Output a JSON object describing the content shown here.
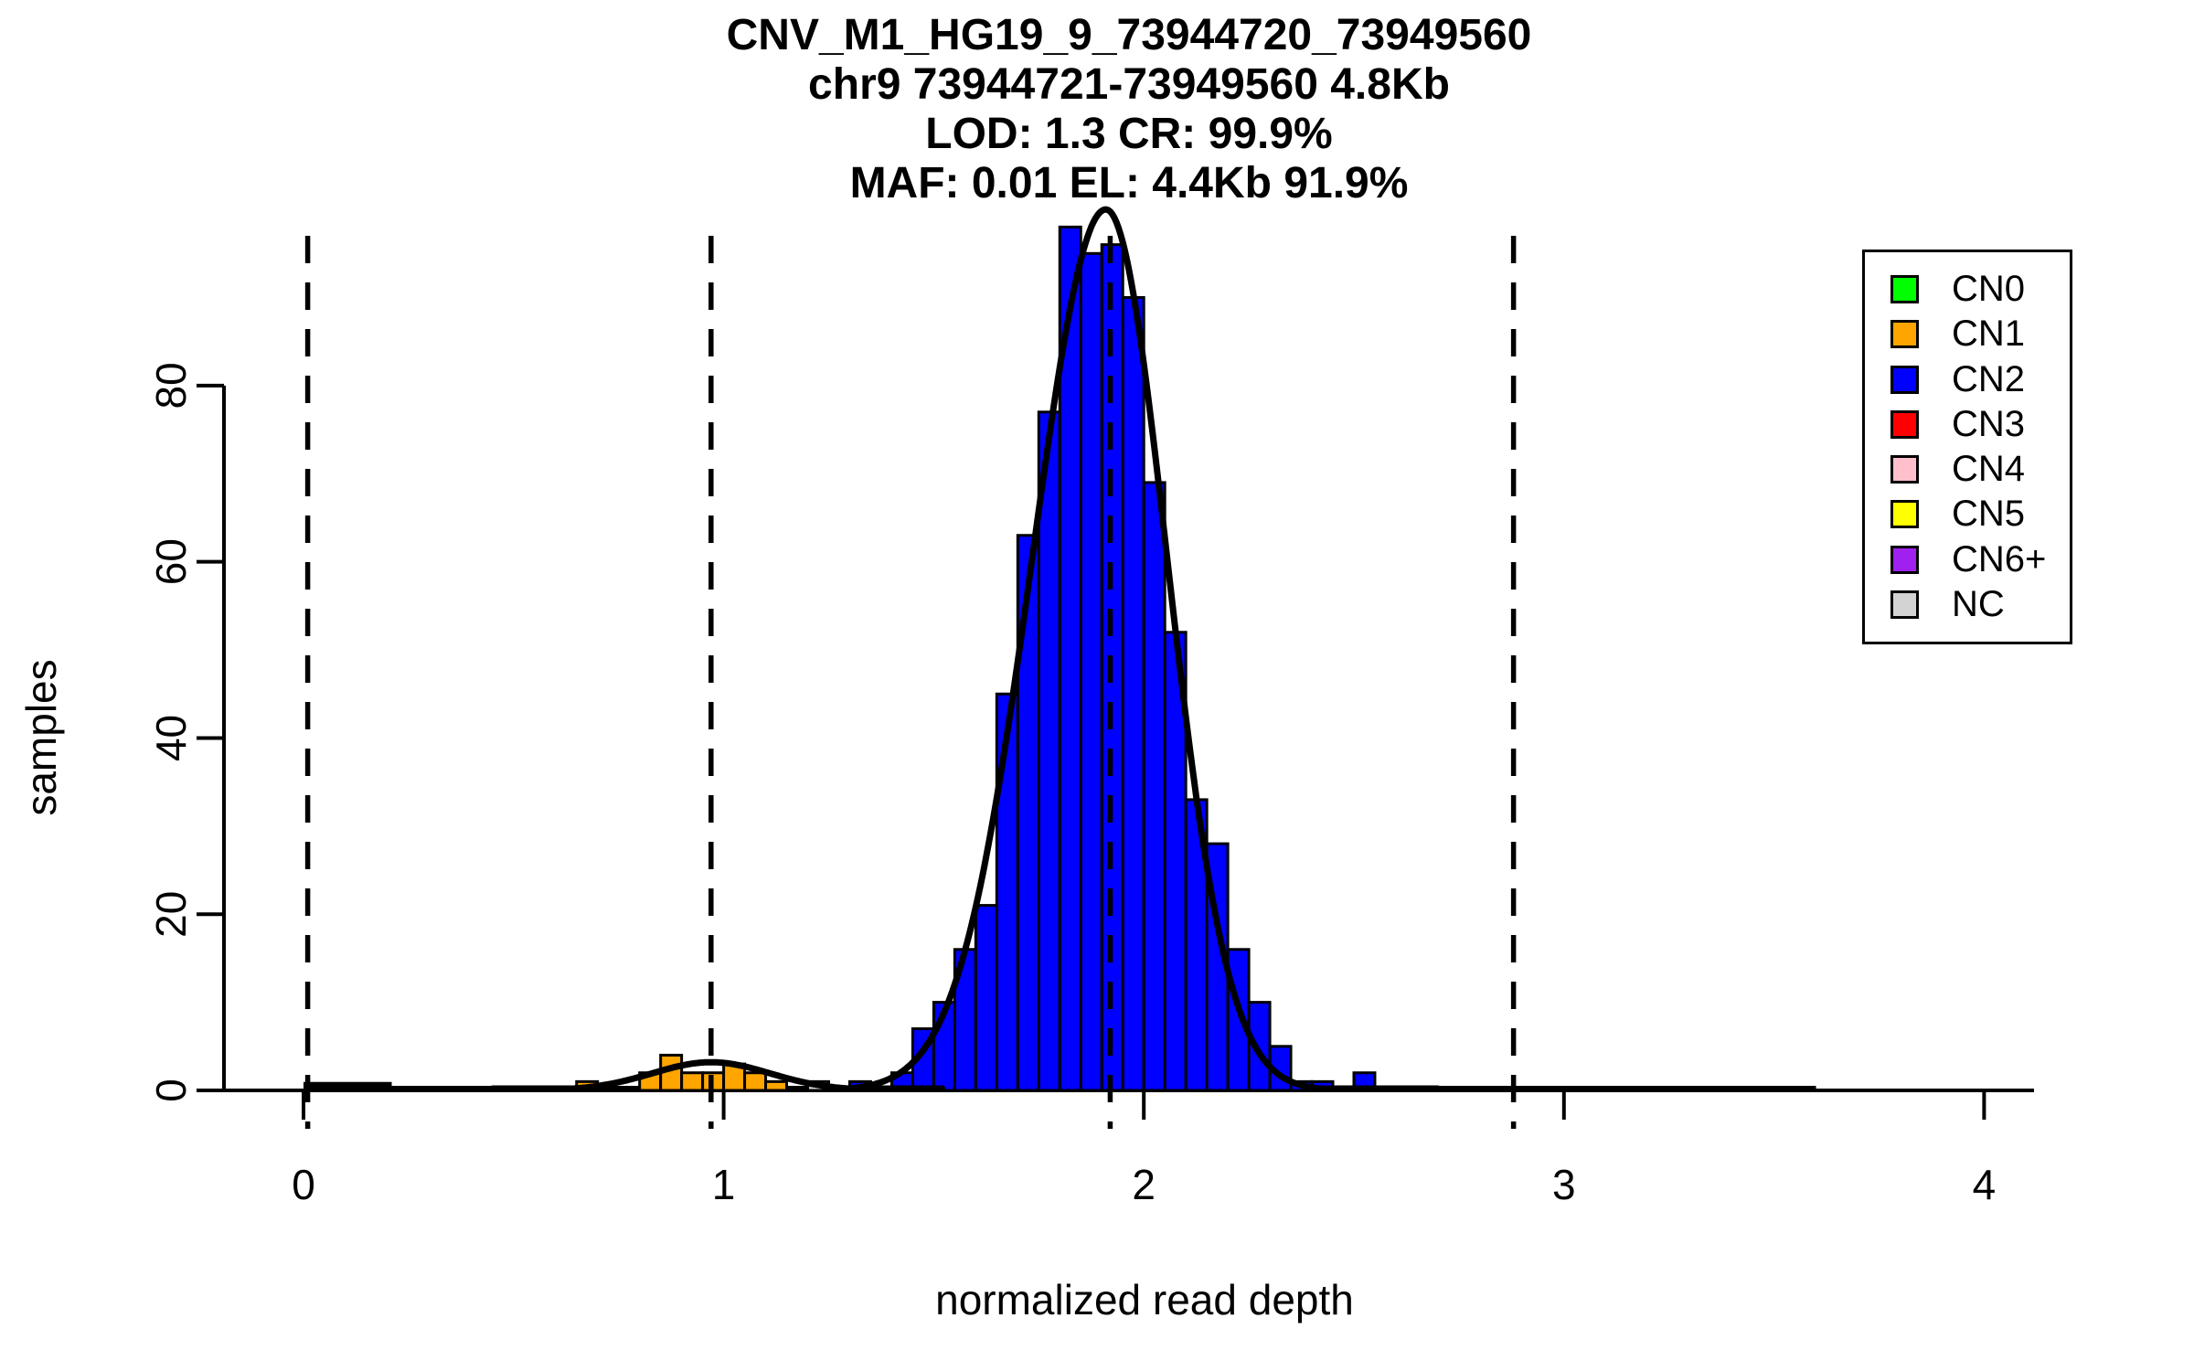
{
  "chart_data": {
    "type": "bar",
    "chart_kind": "histogram-with-gaussian-fits",
    "title_lines": [
      "CNV_M1_HG19_9_73944720_73949560",
      "chr9 73944721-73949560 4.8Kb",
      "LOD: 1.3 CR: 99.9%",
      "MAF: 0.01 EL: 4.4Kb 91.9%"
    ],
    "xlabel": "normalized read depth",
    "ylabel": "samples",
    "x_ticks": [
      "0",
      "1",
      "2",
      "3",
      "4"
    ],
    "x_tick_values": [
      0,
      1,
      2,
      3,
      4
    ],
    "y_ticks": [
      "0",
      "20",
      "40",
      "60",
      "80"
    ],
    "y_tick_values": [
      0,
      20,
      40,
      60,
      80
    ],
    "xlim": [
      -0.19,
      4.07
    ],
    "ylim": [
      0,
      101
    ],
    "grid": false,
    "legend_position": "top-right",
    "bin_width": 0.05,
    "bars": [
      {
        "x": 0.65,
        "count": 1,
        "cn": "CN1"
      },
      {
        "x": 0.8,
        "count": 2,
        "cn": "CN1"
      },
      {
        "x": 0.85,
        "count": 4,
        "cn": "CN1"
      },
      {
        "x": 0.9,
        "count": 2,
        "cn": "CN1"
      },
      {
        "x": 0.95,
        "count": 2,
        "cn": "CN1"
      },
      {
        "x": 1.0,
        "count": 3,
        "cn": "CN1"
      },
      {
        "x": 1.05,
        "count": 2,
        "cn": "CN1"
      },
      {
        "x": 1.1,
        "count": 1,
        "cn": "CN1"
      },
      {
        "x": 1.2,
        "count": 1,
        "cn": "NC"
      },
      {
        "x": 1.3,
        "count": 1,
        "cn": "CN2"
      },
      {
        "x": 1.4,
        "count": 2,
        "cn": "CN2"
      },
      {
        "x": 1.45,
        "count": 7,
        "cn": "CN2"
      },
      {
        "x": 1.5,
        "count": 10,
        "cn": "CN2"
      },
      {
        "x": 1.55,
        "count": 16,
        "cn": "CN2"
      },
      {
        "x": 1.6,
        "count": 21,
        "cn": "CN2"
      },
      {
        "x": 1.65,
        "count": 45,
        "cn": "CN2"
      },
      {
        "x": 1.7,
        "count": 63,
        "cn": "CN2"
      },
      {
        "x": 1.75,
        "count": 77,
        "cn": "CN2"
      },
      {
        "x": 1.8,
        "count": 98,
        "cn": "CN2"
      },
      {
        "x": 1.85,
        "count": 95,
        "cn": "CN2"
      },
      {
        "x": 1.9,
        "count": 96,
        "cn": "CN2"
      },
      {
        "x": 1.95,
        "count": 90,
        "cn": "CN2"
      },
      {
        "x": 2.0,
        "count": 69,
        "cn": "CN2"
      },
      {
        "x": 2.05,
        "count": 52,
        "cn": "CN2"
      },
      {
        "x": 2.1,
        "count": 33,
        "cn": "CN2"
      },
      {
        "x": 2.15,
        "count": 28,
        "cn": "CN2"
      },
      {
        "x": 2.2,
        "count": 16,
        "cn": "CN2"
      },
      {
        "x": 2.25,
        "count": 10,
        "cn": "CN2"
      },
      {
        "x": 2.3,
        "count": 5,
        "cn": "CN2"
      },
      {
        "x": 2.35,
        "count": 1,
        "cn": "CN2"
      },
      {
        "x": 2.4,
        "count": 1,
        "cn": "CN2"
      },
      {
        "x": 2.5,
        "count": 2,
        "cn": "CN2"
      }
    ],
    "fit_curves": [
      {
        "name": "CN1-gaussian-fit",
        "amplitude": 3.2,
        "mean": 0.97,
        "sd_left": 0.14,
        "sd_right": 0.14,
        "from": 0.45,
        "to": 1.52
      },
      {
        "name": "CN2-gaussian-fit",
        "amplitude": 100,
        "mean": 1.91,
        "sd_left": 0.175,
        "sd_right": 0.145,
        "from": 1.28,
        "to": 2.7
      }
    ],
    "dashed_vlines": [
      0.01,
      0.97,
      1.92,
      2.88
    ],
    "zero_outline": {
      "from": 0.0,
      "to": 3.6
    },
    "cn0_bump": {
      "from": 0.0,
      "to": 0.21,
      "height": 0.7
    },
    "cn_colors": {
      "CN0": "#00FF00",
      "CN1": "#FFA500",
      "CN2": "#0000FF",
      "CN3": "#FF0000",
      "CN4": "#FFC0CB",
      "CN5": "#FFFF00",
      "CN6+": "#A020F0",
      "NC": "#D3D3D3"
    }
  },
  "legend": {
    "items": [
      {
        "label": "CN0",
        "color": "#00FF00"
      },
      {
        "label": "CN1",
        "color": "#FFA500"
      },
      {
        "label": "CN2",
        "color": "#0000FF"
      },
      {
        "label": "CN3",
        "color": "#FF0000"
      },
      {
        "label": "CN4",
        "color": "#FFC0CB"
      },
      {
        "label": "CN5",
        "color": "#FFFF00"
      },
      {
        "label": "CN6+",
        "color": "#A020F0"
      },
      {
        "label": "NC",
        "color": "#D3D3D3"
      }
    ]
  }
}
